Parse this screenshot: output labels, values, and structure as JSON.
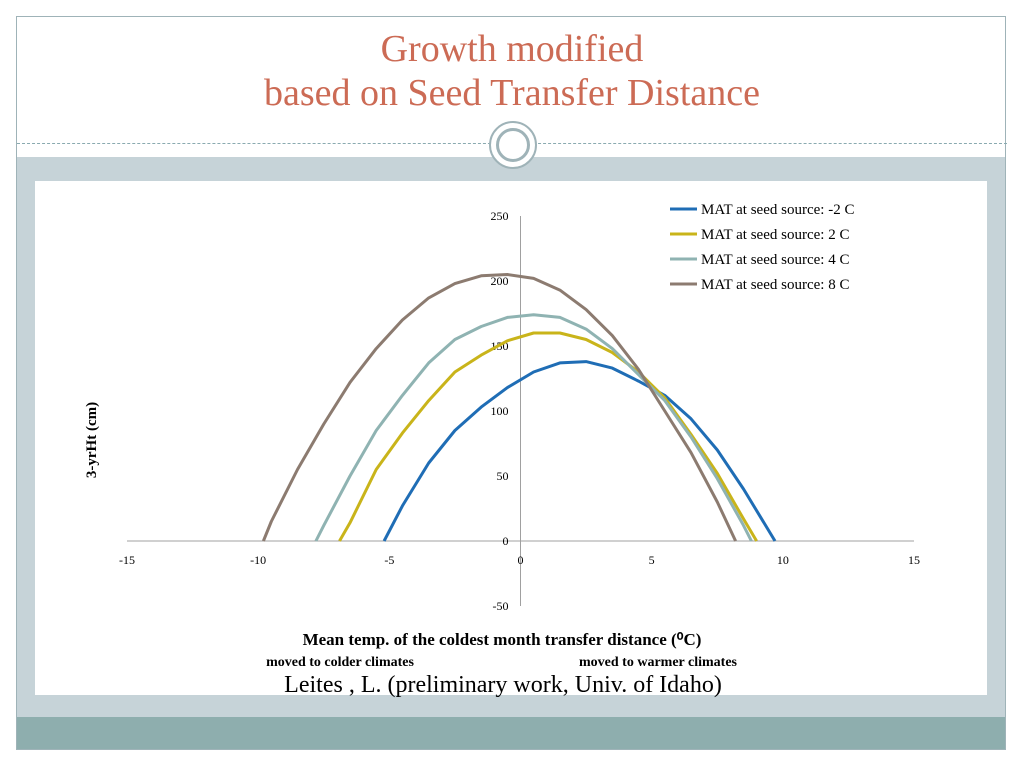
{
  "title": {
    "line1": "Growth modified",
    "line2": "based on Seed Transfer Distance"
  },
  "citation": "Leites , L. (preliminary work, Univ. of Idaho)",
  "colors": {
    "title": "#cc6b55",
    "frame": "#9fb3b8",
    "band": "#c6d3d8",
    "bottom_band": "#8eaeae"
  },
  "chart_data": {
    "type": "line",
    "xlabel": "Mean temp. of the coldest month transfer distance (⁰C)",
    "xsub_left": "moved to colder climates",
    "xsub_right": "moved to warmer climates",
    "ylabel": "3-yrHt (cm)",
    "xlim": [
      -15,
      15
    ],
    "ylim": [
      -50,
      250
    ],
    "xticks": [
      "-15",
      "-10",
      "-5",
      "0",
      "5",
      "10",
      "15"
    ],
    "yticks": [
      "250",
      "200",
      "150",
      "100",
      "50",
      "0",
      "-50"
    ],
    "grid": false,
    "legend_position": "top-right",
    "series": [
      {
        "name": "MAT at seed source: -2 C",
        "color": "#1f6db5",
        "x": [
          -5.2,
          -4.5,
          -3.5,
          -2.5,
          -1.5,
          -0.5,
          0.5,
          1.5,
          2.5,
          3.5,
          4.5,
          5.5,
          6.5,
          7.5,
          8.5,
          9.7
        ],
        "y": [
          0,
          27,
          60,
          85,
          103,
          118,
          130,
          137,
          138,
          133,
          123,
          112,
          94,
          70,
          40,
          0
        ]
      },
      {
        "name": "MAT at seed source: 2 C",
        "color": "#c9b41a",
        "x": [
          -6.9,
          -6.5,
          -5.5,
          -4.5,
          -3.5,
          -2.5,
          -1.5,
          -0.5,
          0.5,
          1.5,
          2.5,
          3.5,
          4.5,
          5.5,
          6.5,
          7.5,
          8.5,
          9.0
        ],
        "y": [
          0,
          14,
          55,
          83,
          108,
          130,
          143,
          154,
          160,
          160,
          155,
          145,
          130,
          110,
          82,
          52,
          17,
          0
        ]
      },
      {
        "name": "MAT at seed source: 4 C",
        "color": "#8fb3b2",
        "x": [
          -7.8,
          -7.5,
          -6.5,
          -5.5,
          -4.5,
          -3.5,
          -2.5,
          -1.5,
          -0.5,
          0.5,
          1.5,
          2.5,
          3.5,
          4.5,
          5.5,
          6.5,
          7.5,
          8.5,
          8.8
        ],
        "y": [
          0,
          12,
          50,
          85,
          112,
          137,
          155,
          165,
          172,
          174,
          172,
          163,
          148,
          128,
          108,
          80,
          48,
          12,
          0
        ]
      },
      {
        "name": "MAT at seed source: 8 C",
        "color": "#8c7b70",
        "x": [
          -9.8,
          -9.5,
          -8.5,
          -7.5,
          -6.5,
          -5.5,
          -4.5,
          -3.5,
          -2.5,
          -1.5,
          -0.5,
          0.5,
          1.5,
          2.5,
          3.5,
          4.5,
          5.5,
          6.5,
          7.5,
          8.2
        ],
        "y": [
          0,
          15,
          55,
          90,
          122,
          148,
          170,
          187,
          198,
          204,
          205,
          202,
          193,
          178,
          158,
          132,
          100,
          68,
          30,
          0
        ]
      }
    ]
  }
}
